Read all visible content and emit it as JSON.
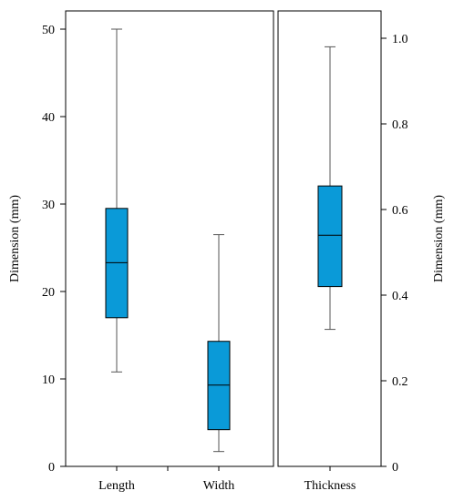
{
  "chart_data": [
    {
      "type": "box",
      "ylabel": "Dimension (mm)",
      "ylim": [
        0,
        50
      ],
      "yticks": [
        0,
        10,
        20,
        30,
        40,
        50
      ],
      "axis_side": "left",
      "box_color": "#0a9ad8",
      "categories": [
        "Length",
        "Width"
      ],
      "boxes": [
        {
          "label": "Length",
          "min": 10.8,
          "q1": 17.0,
          "median": 23.3,
          "q3": 29.5,
          "max": 50.0
        },
        {
          "label": "Width",
          "min": 1.7,
          "q1": 4.2,
          "median": 9.3,
          "q3": 14.3,
          "max": 26.5
        }
      ]
    },
    {
      "type": "box",
      "ylabel": "Dimension (mm)",
      "ylim": [
        0,
        1.0
      ],
      "yticks": [
        0,
        0.2,
        0.4,
        0.6,
        0.8,
        1.0
      ],
      "ytick_labels": [
        "0",
        "0.2",
        "0.4",
        "0.6",
        "0.8",
        "1.0"
      ],
      "axis_side": "right",
      "box_color": "#0a9ad8",
      "categories": [
        "Thickness"
      ],
      "boxes": [
        {
          "label": "Thickness",
          "min": 0.32,
          "q1": 0.42,
          "median": 0.54,
          "q3": 0.655,
          "max": 0.98
        }
      ]
    }
  ]
}
